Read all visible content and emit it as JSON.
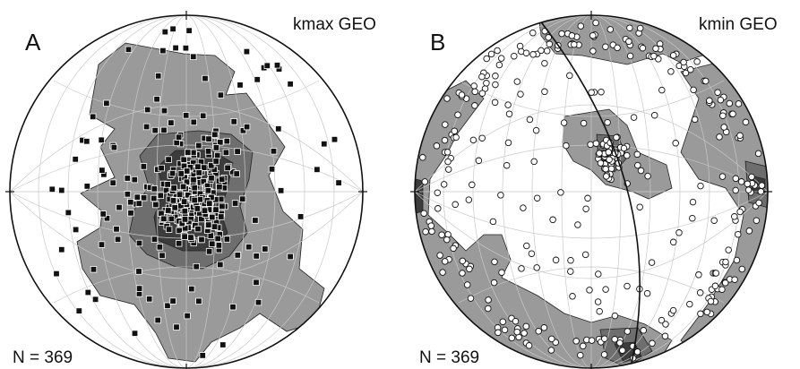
{
  "figure": {
    "panels": [
      {
        "id": "A",
        "letter": "A",
        "title": "kmax GEO",
        "count_label": "N = 369",
        "marker": "filled-square",
        "marker_color": "#111111",
        "n": 369
      },
      {
        "id": "B",
        "letter": "B",
        "title": "kmin GEO",
        "count_label": "N = 369",
        "marker": "open-circle",
        "marker_color": "#ffffff",
        "n": 369
      }
    ],
    "contour_colors": [
      "#ffffff",
      "#9a9a9a",
      "#6e6e6e",
      "#3c3c3c"
    ],
    "grid_color": "#c8c8c8",
    "outline_color": "#111111"
  }
}
